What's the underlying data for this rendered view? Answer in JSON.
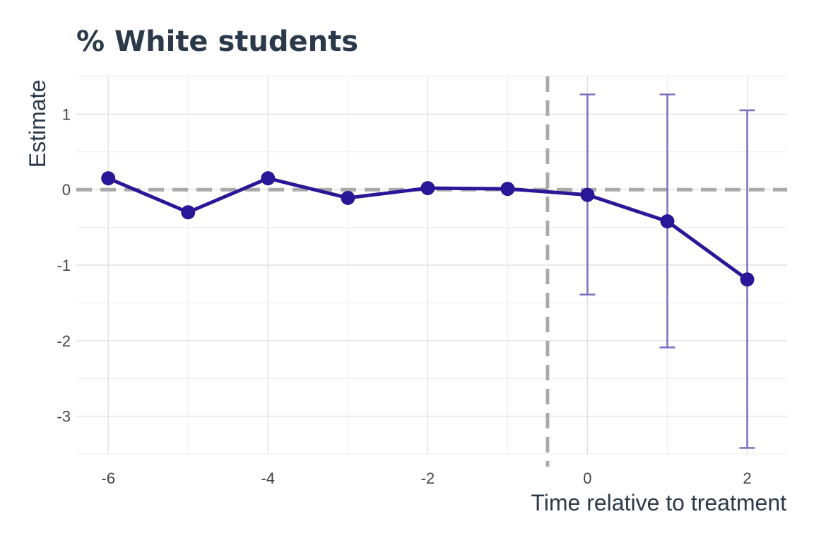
{
  "chart_data": {
    "type": "line",
    "title": "% White students",
    "xlabel": "Time relative to treatment",
    "ylabel": "Estimate",
    "xlim": [
      -6.4,
      2.5
    ],
    "ylim": [
      -3.5,
      1.5
    ],
    "x_ticks": [
      -6,
      -4,
      -2,
      0,
      2
    ],
    "x_tick_labels": [
      "-6",
      "-4",
      "-2",
      "0",
      "2"
    ],
    "y_ticks": [
      1,
      0,
      -1,
      -2,
      -3
    ],
    "y_tick_labels": [
      "1",
      "0",
      "-1",
      "-2",
      "-3"
    ],
    "grid": true,
    "reference_lines": {
      "h": 0,
      "v": -0.5
    },
    "series": [
      {
        "x": [
          -6,
          -5,
          -4,
          -3,
          -2,
          -1,
          0,
          1,
          2
        ],
        "y": [
          0.15,
          -0.3,
          0.15,
          -0.11,
          0.02,
          0.01,
          -0.07,
          -0.42,
          -1.19
        ]
      }
    ],
    "error_bars": [
      {
        "x": 0,
        "low": -1.39,
        "high": 1.26
      },
      {
        "x": 1,
        "low": -2.09,
        "high": 1.26
      },
      {
        "x": 2,
        "low": -3.42,
        "high": 1.05
      }
    ],
    "colors": {
      "line": "#2a1797",
      "error_bar": "#7d6fbf",
      "reference": "#aaaaaa",
      "grid": "#dddddd"
    }
  }
}
